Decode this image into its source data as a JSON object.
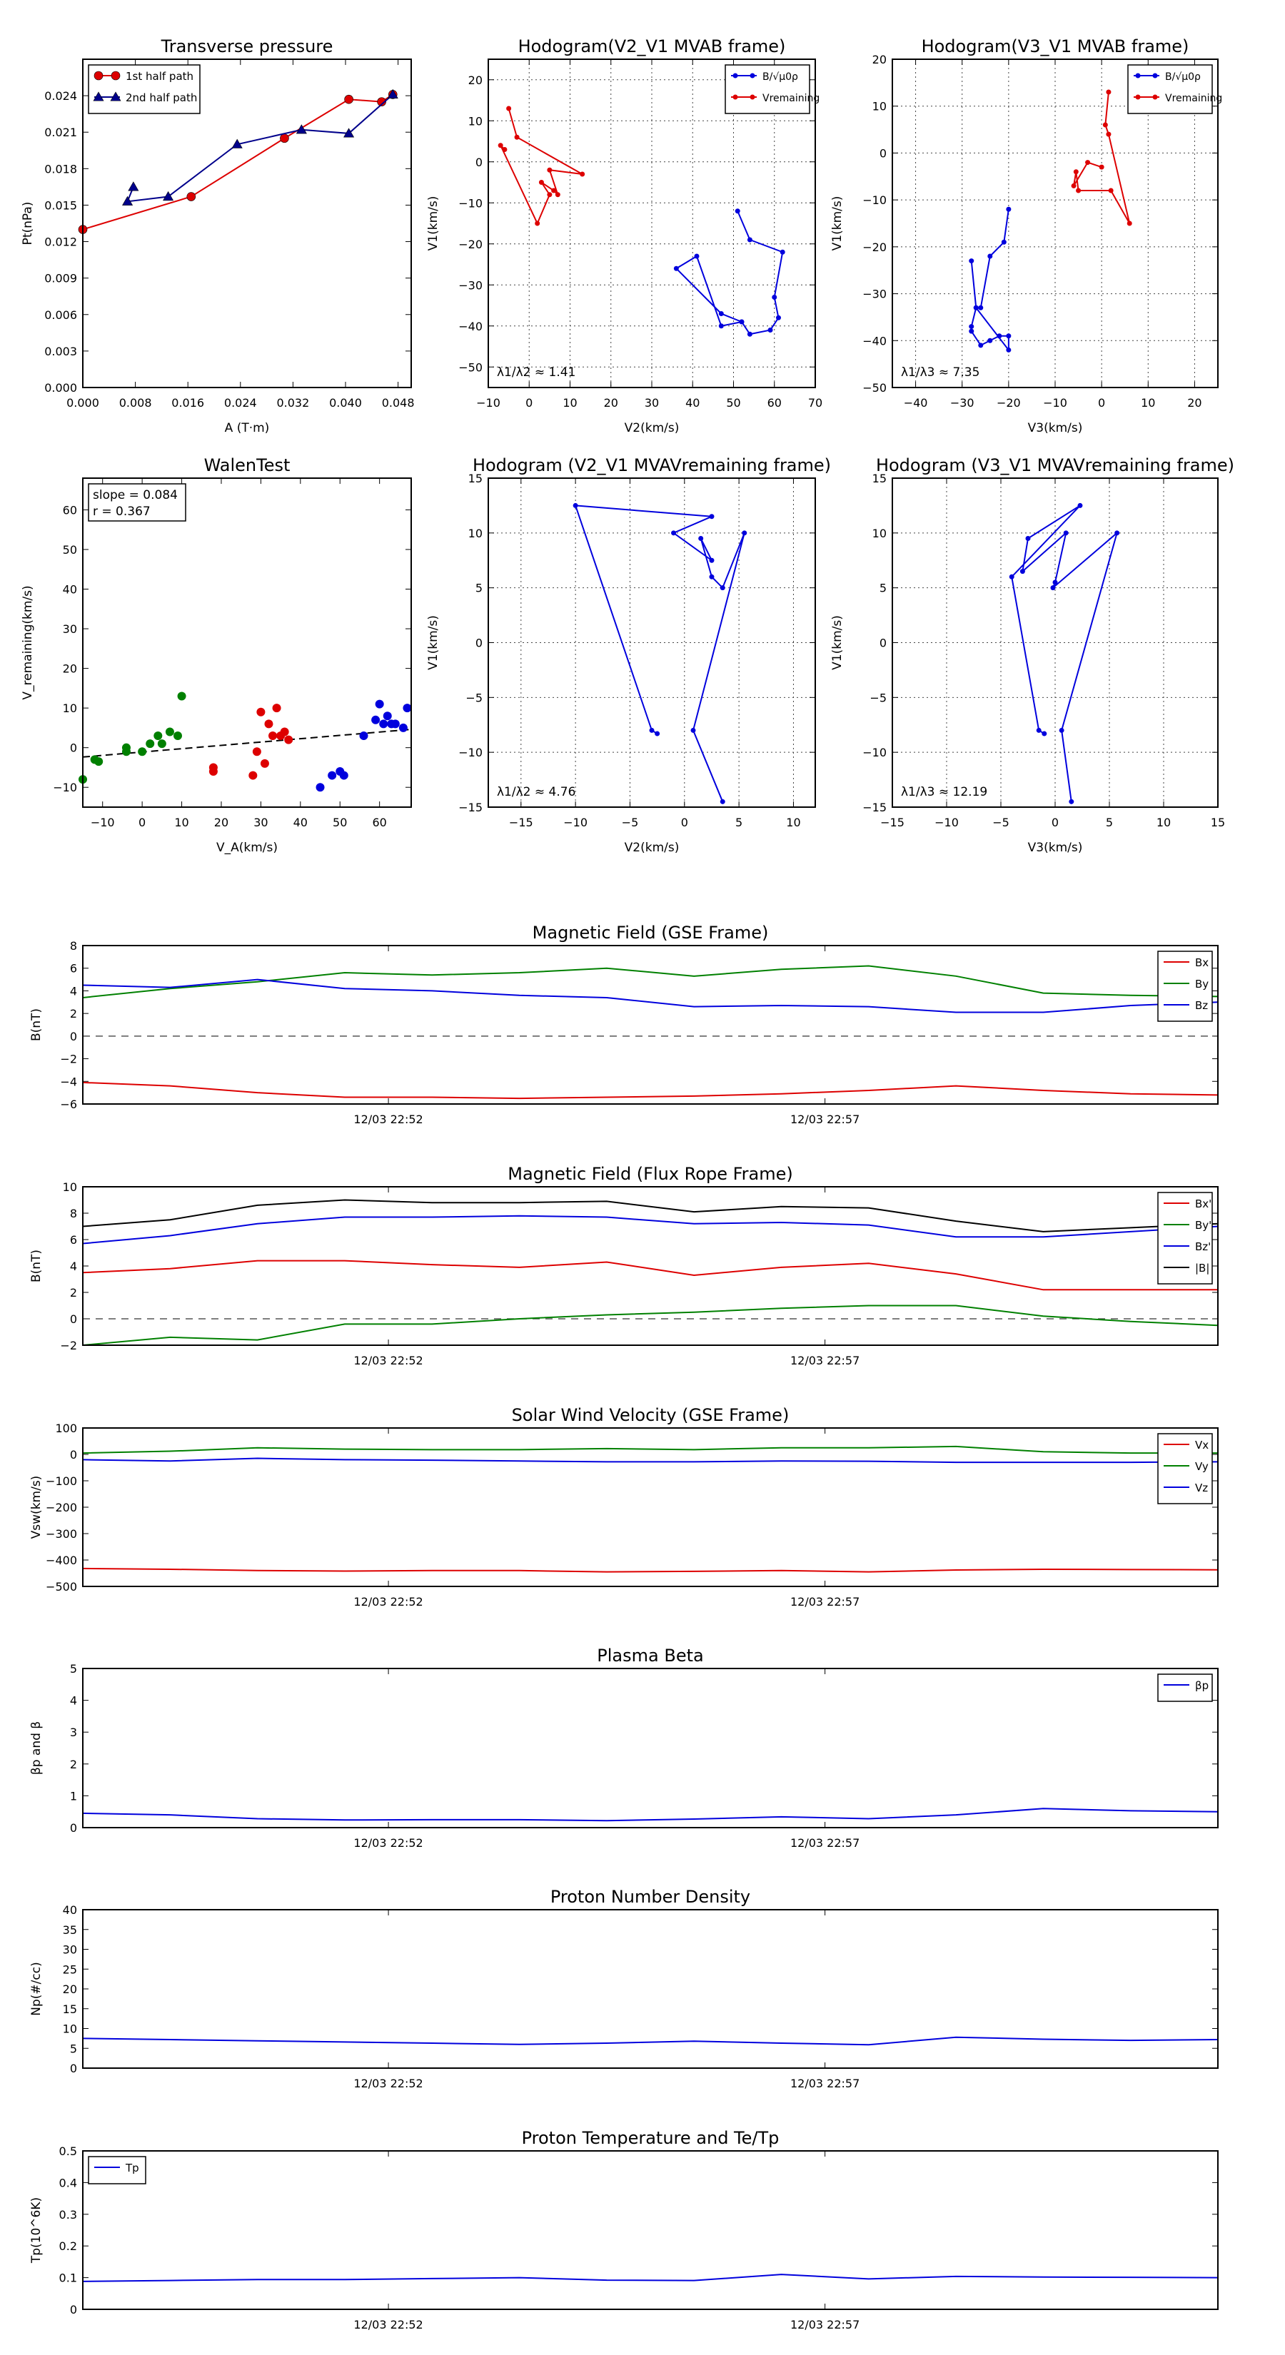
{
  "chart_data": [
    {
      "type": "line",
      "title": "Transverse pressure",
      "xlabel": "A (T·m)",
      "ylabel": "Pt(nPa)",
      "xlim": [
        0,
        0.05
      ],
      "ylim": [
        0,
        0.027
      ],
      "xticks": [
        0.0,
        0.008,
        0.016,
        0.024,
        0.032,
        0.04,
        0.048
      ],
      "xtick_labels": [
        "0.000",
        "0.008",
        "0.016",
        "0.024",
        "0.032",
        "0.040",
        "0.048"
      ],
      "yticks": [
        0,
        0.003,
        0.006,
        0.009,
        0.012,
        0.015,
        0.018,
        0.021,
        0.024
      ],
      "ytick_labels": [
        "0.000",
        "0.003",
        "0.006",
        "0.009",
        "0.012",
        "0.015",
        "0.018",
        "0.021",
        "0.024"
      ],
      "grid": false,
      "legend": "top-left",
      "series": [
        {
          "name": "1st half path",
          "color": "#dd0000",
          "marker": "circle",
          "x": [
            0.0,
            0.0165,
            0.0307,
            0.0405,
            0.0455,
            0.0472
          ],
          "y": [
            0.013,
            0.0157,
            0.0205,
            0.0237,
            0.0235,
            0.0241
          ]
        },
        {
          "name": "2nd half path",
          "color": "#00008b",
          "marker": "triangle",
          "x": [
            0.0077,
            0.0068,
            0.013,
            0.0235,
            0.0333,
            0.0405,
            0.0472
          ],
          "y": [
            0.0165,
            0.0153,
            0.0157,
            0.02,
            0.0212,
            0.0209,
            0.0241
          ]
        }
      ]
    },
    {
      "type": "line",
      "title": "Hodogram(V2_V1 MVAB frame)",
      "xlabel": "V2(km/s)",
      "ylabel": "V1(km/s)",
      "xlim": [
        -10,
        70
      ],
      "ylim": [
        -55,
        25
      ],
      "xticks": [
        -10,
        0,
        10,
        20,
        30,
        40,
        50,
        60,
        70
      ],
      "yticks": [
        -50,
        -40,
        -30,
        -20,
        -10,
        0,
        10,
        20
      ],
      "grid": true,
      "legend": "top-right",
      "annotation": "λ1/λ2 ≈ 1.41",
      "series": [
        {
          "name": "B/√μ0ρ",
          "color": "#0000dd",
          "x": [
            51,
            54,
            62,
            60,
            61,
            59,
            54,
            52,
            47,
            41,
            36,
            47,
            52
          ],
          "y": [
            -12,
            -19,
            -22,
            -33,
            -38,
            -41,
            -42,
            -39,
            -40,
            -23,
            -26,
            -37,
            -39
          ]
        },
        {
          "name": "Vremaining",
          "color": "#dd0000",
          "x": [
            -5,
            -3,
            13,
            5,
            7,
            6,
            3,
            5,
            2,
            -7,
            -6
          ],
          "y": [
            13,
            6,
            -3,
            -2,
            -8,
            -7,
            -5,
            -8,
            -15,
            4,
            3
          ]
        }
      ]
    },
    {
      "type": "line",
      "title": "Hodogram(V3_V1 MVAB frame)",
      "xlabel": "V3(km/s)",
      "ylabel": "V1(km/s)",
      "xlim": [
        -45,
        25
      ],
      "ylim": [
        -50,
        20
      ],
      "xticks": [
        -40,
        -30,
        -20,
        -10,
        0,
        10,
        20
      ],
      "yticks": [
        -50,
        -40,
        -30,
        -20,
        -10,
        0,
        10,
        20
      ],
      "grid": true,
      "legend": "top-right",
      "annotation": "λ1/λ3 ≈ 7.35",
      "series": [
        {
          "name": "B/√μ0ρ",
          "color": "#0000dd",
          "x": [
            -20,
            -21,
            -24,
            -26,
            -27,
            -28,
            -28,
            -26,
            -24,
            -22,
            -20,
            -20,
            -27,
            -28
          ],
          "y": [
            -12,
            -19,
            -22,
            -33,
            -33,
            -37,
            -38,
            -41,
            -40,
            -39,
            -39,
            -42,
            -33,
            -23
          ]
        },
        {
          "name": "Vremaining",
          "color": "#dd0000",
          "x": [
            1.5,
            0.8,
            1.5,
            6,
            2,
            -5,
            -5.5,
            -6,
            -3,
            0
          ],
          "y": [
            13,
            6,
            4,
            -15,
            -8,
            -8,
            -4,
            -7,
            -2,
            -3
          ]
        }
      ]
    },
    {
      "type": "scatter",
      "title": "WalenTest",
      "xlabel": "V_A(km/s)",
      "ylabel": "V_remaining(km/s)",
      "xlim": [
        -15,
        68
      ],
      "ylim": [
        -15,
        68
      ],
      "xticks": [
        -10,
        0,
        10,
        20,
        30,
        40,
        50,
        60
      ],
      "yticks": [
        -10,
        0,
        10,
        20,
        30,
        40,
        50,
        60
      ],
      "grid": false,
      "annotations": [
        "slope = 0.084",
        "r = 0.367"
      ],
      "fit_line": {
        "slope": 0.084,
        "intercept": -1.1
      },
      "series": [
        {
          "color": "#008000",
          "x": [
            -15,
            -12,
            -11,
            -4,
            -4,
            0,
            2,
            4,
            5,
            7,
            9,
            10
          ],
          "y": [
            -8,
            -3,
            -3.5,
            0,
            -1,
            -1,
            1,
            3,
            1,
            4,
            3,
            13
          ]
        },
        {
          "color": "#dd0000",
          "x": [
            18,
            18,
            28,
            29,
            30,
            31,
            32,
            33,
            34,
            35,
            36,
            37
          ],
          "y": [
            -5,
            -6,
            -7,
            -1,
            9,
            -4,
            6,
            3,
            10,
            3,
            4,
            2
          ]
        },
        {
          "color": "#0000dd",
          "x": [
            45,
            48,
            50,
            51,
            56,
            59,
            60,
            61,
            62,
            63,
            64,
            66,
            67
          ],
          "y": [
            -10,
            -7,
            -6,
            -7,
            3,
            7,
            11,
            6,
            8,
            6,
            6,
            5,
            10
          ]
        }
      ]
    },
    {
      "type": "line",
      "title": "Hodogram (V2_V1 MVAVremaining frame)",
      "xlabel": "V2(km/s)",
      "ylabel": "V1(km/s)",
      "xlim": [
        -18,
        12
      ],
      "ylim": [
        -15,
        15
      ],
      "xticks": [
        -15,
        -10,
        -5,
        0,
        5,
        10
      ],
      "yticks": [
        -15,
        -10,
        -5,
        0,
        5,
        10,
        15
      ],
      "grid": true,
      "annotation": "λ1/λ2 ≈ 4.76",
      "series": [
        {
          "color": "#0000dd",
          "x": [
            3.5,
            0.8,
            5.5,
            3.5,
            2.5,
            1.5,
            2.5,
            -1,
            2.5,
            -10,
            -3,
            -2.5
          ],
          "y": [
            -14.5,
            -8,
            10,
            5,
            6,
            9.5,
            7.5,
            10,
            11.5,
            12.5,
            -8,
            -8.3
          ]
        }
      ]
    },
    {
      "type": "line",
      "title": "Hodogram (V3_V1 MVAVremaining frame)",
      "xlabel": "V3(km/s)",
      "ylabel": "V1(km/s)",
      "xlim": [
        -15,
        15
      ],
      "ylim": [
        -15,
        15
      ],
      "xticks": [
        -15,
        -10,
        -5,
        0,
        5,
        10,
        15
      ],
      "yticks": [
        -15,
        -10,
        -5,
        0,
        5,
        10,
        15
      ],
      "grid": true,
      "annotation": "λ1/λ3 ≈ 12.19",
      "series": [
        {
          "color": "#0000dd",
          "x": [
            1.5,
            0.6,
            5.7,
            -0.2,
            0,
            1,
            -3,
            -2.5,
            2.3,
            -4,
            -1.5,
            -1
          ],
          "y": [
            -14.5,
            -8,
            10,
            5,
            5.5,
            10,
            6.5,
            9.5,
            12.5,
            6,
            -8,
            -8.3
          ]
        }
      ]
    },
    {
      "type": "line",
      "title": "Magnetic Field (GSE Frame)",
      "ylabel": "B(nT)",
      "ylim": [
        -6,
        8
      ],
      "yticks": [
        -6,
        -4,
        -2,
        0,
        2,
        4,
        6,
        8
      ],
      "x": [
        0,
        1,
        2,
        3,
        4,
        5,
        6,
        7,
        8,
        9,
        10,
        11,
        12,
        13
      ],
      "xtick_positions": [
        3.5,
        8.5
      ],
      "xtick_labels": [
        "12/03 22:52",
        "12/03 22:57"
      ],
      "dashed_zero": true,
      "legend": "top-right",
      "series": [
        {
          "name": "Bx",
          "color": "#dd0000",
          "values": [
            -4.1,
            -4.4,
            -5.0,
            -5.4,
            -5.4,
            -5.5,
            -5.4,
            -5.3,
            -5.1,
            -4.8,
            -4.4,
            -4.8,
            -5.1,
            -5.2
          ]
        },
        {
          "name": "By",
          "color": "#008000",
          "values": [
            3.4,
            4.2,
            4.8,
            5.6,
            5.4,
            5.6,
            6.0,
            5.3,
            5.9,
            6.2,
            5.3,
            3.8,
            3.6,
            3.5
          ]
        },
        {
          "name": "Bz",
          "color": "#0000dd",
          "values": [
            4.5,
            4.3,
            5.0,
            4.2,
            4.0,
            3.6,
            3.4,
            2.6,
            2.7,
            2.6,
            2.1,
            2.1,
            2.7,
            3.0
          ]
        }
      ]
    },
    {
      "type": "line",
      "title": "Magnetic Field (Flux Rope Frame)",
      "ylabel": "B(nT)",
      "ylim": [
        -2,
        10
      ],
      "yticks": [
        -2,
        0,
        2,
        4,
        6,
        8,
        10
      ],
      "x": [
        0,
        1,
        2,
        3,
        4,
        5,
        6,
        7,
        8,
        9,
        10,
        11,
        12,
        13
      ],
      "xtick_positions": [
        3.5,
        8.5
      ],
      "xtick_labels": [
        "12/03 22:52",
        "12/03 22:57"
      ],
      "dashed_zero": true,
      "legend": "top-right",
      "series": [
        {
          "name": "Bx'",
          "color": "#dd0000",
          "values": [
            3.5,
            3.8,
            4.4,
            4.4,
            4.1,
            3.9,
            4.3,
            3.3,
            3.9,
            4.2,
            3.4,
            2.2,
            2.2,
            2.2
          ]
        },
        {
          "name": "By'",
          "color": "#008000",
          "values": [
            -2.0,
            -1.4,
            -1.6,
            -0.4,
            -0.4,
            0.0,
            0.3,
            0.5,
            0.8,
            1.0,
            1.0,
            0.2,
            -0.2,
            -0.5
          ]
        },
        {
          "name": "Bz'",
          "color": "#0000dd",
          "values": [
            5.7,
            6.3,
            7.2,
            7.7,
            7.7,
            7.8,
            7.7,
            7.2,
            7.3,
            7.1,
            6.2,
            6.2,
            6.6,
            7.0
          ]
        },
        {
          "name": "|B|",
          "color": "#000000",
          "values": [
            7.0,
            7.5,
            8.6,
            9.0,
            8.8,
            8.8,
            8.9,
            8.1,
            8.5,
            8.4,
            7.4,
            6.6,
            6.9,
            7.2
          ]
        }
      ]
    },
    {
      "type": "line",
      "title": "Solar Wind Velocity (GSE Frame)",
      "ylabel": "Vsw(km/s)",
      "ylim": [
        -500,
        100
      ],
      "yticks": [
        -500,
        -400,
        -300,
        -200,
        -100,
        0,
        100
      ],
      "x": [
        0,
        1,
        2,
        3,
        4,
        5,
        6,
        7,
        8,
        9,
        10,
        11,
        12,
        13
      ],
      "xtick_positions": [
        3.5,
        8.5
      ],
      "xtick_labels": [
        "12/03 22:52",
        "12/03 22:57"
      ],
      "legend": "top-right",
      "series": [
        {
          "name": "Vx",
          "color": "#dd0000",
          "values": [
            -432,
            -435,
            -440,
            -442,
            -440,
            -440,
            -445,
            -443,
            -440,
            -445,
            -438,
            -435,
            -436,
            -437
          ]
        },
        {
          "name": "Vy",
          "color": "#008000",
          "values": [
            5,
            12,
            25,
            20,
            18,
            18,
            22,
            18,
            25,
            25,
            30,
            10,
            5,
            5
          ]
        },
        {
          "name": "Vz",
          "color": "#0000dd",
          "values": [
            -20,
            -25,
            -15,
            -20,
            -22,
            -25,
            -28,
            -28,
            -25,
            -26,
            -30,
            -30,
            -30,
            -28
          ]
        }
      ]
    },
    {
      "type": "line",
      "title": "Plasma Beta",
      "ylabel": "βp and β",
      "ylim": [
        0,
        5
      ],
      "yticks": [
        0,
        1,
        2,
        3,
        4,
        5
      ],
      "x": [
        0,
        1,
        2,
        3,
        4,
        5,
        6,
        7,
        8,
        9,
        10,
        11,
        12,
        13
      ],
      "xtick_positions": [
        3.5,
        8.5
      ],
      "xtick_labels": [
        "12/03 22:52",
        "12/03 22:57"
      ],
      "legend": "top-right",
      "series": [
        {
          "name": "βp",
          "color": "#0000dd",
          "values": [
            0.45,
            0.4,
            0.28,
            0.24,
            0.25,
            0.25,
            0.22,
            0.27,
            0.34,
            0.28,
            0.4,
            0.6,
            0.53,
            0.5
          ]
        }
      ]
    },
    {
      "type": "line",
      "title": "Proton Number Density",
      "ylabel": "Np(#/cc)",
      "ylim": [
        0,
        40
      ],
      "yticks": [
        0,
        5,
        10,
        15,
        20,
        25,
        30,
        35,
        40
      ],
      "x": [
        0,
        1,
        2,
        3,
        4,
        5,
        6,
        7,
        8,
        9,
        10,
        11,
        12,
        13
      ],
      "xtick_positions": [
        3.5,
        8.5
      ],
      "xtick_labels": [
        "12/03 22:52",
        "12/03 22:57"
      ],
      "series": [
        {
          "color": "#0000dd",
          "values": [
            7.5,
            7.2,
            6.9,
            6.6,
            6.3,
            6.0,
            6.3,
            6.8,
            6.3,
            5.9,
            7.8,
            7.3,
            7.0,
            7.2
          ]
        }
      ]
    },
    {
      "type": "line",
      "title": "Proton Temperature and Te/Tp",
      "ylabel": "Tp(10^6K)",
      "ylim": [
        0,
        0.5
      ],
      "yticks": [
        0.0,
        0.1,
        0.2,
        0.3,
        0.4,
        0.5
      ],
      "x": [
        0,
        1,
        2,
        3,
        4,
        5,
        6,
        7,
        8,
        9,
        10,
        11,
        12,
        13
      ],
      "xtick_positions": [
        3.5,
        8.5
      ],
      "xtick_labels": [
        "12/03 22:52",
        "12/03 22:57"
      ],
      "legend": "top-left",
      "series": [
        {
          "name": "Tp",
          "color": "#0000dd",
          "values": [
            0.088,
            0.091,
            0.094,
            0.094,
            0.097,
            0.1,
            0.092,
            0.091,
            0.11,
            0.096,
            0.104,
            0.102,
            0.101,
            0.1
          ]
        }
      ]
    }
  ]
}
